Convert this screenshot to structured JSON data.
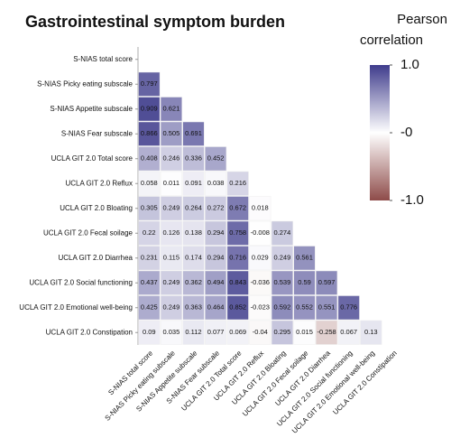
{
  "chart_data": {
    "type": "heatmap",
    "title": "Gastrointestinal symptom burden",
    "categories": [
      "S-NIAS total score",
      "S-NIAS Picky eating subscale",
      "S-NIAS Appetite subscale",
      "S-NIAS Fear subscale",
      "UCLA GIT 2.0 Total score",
      "UCLA GIT 2.0 Reflux",
      "UCLA GIT 2.0 Bloating",
      "UCLA GIT 2.0 Fecal soilage",
      "UCLA GIT 2.0 Diarrhea",
      "UCLA GIT 2.0 Social functioning",
      "UCLA GIT 2.0 Emotional well-being",
      "UCLA GIT 2.0 Constipation"
    ],
    "values": [
      [
        null,
        null,
        null,
        null,
        null,
        null,
        null,
        null,
        null,
        null,
        null,
        null
      ],
      [
        0.797,
        null,
        null,
        null,
        null,
        null,
        null,
        null,
        null,
        null,
        null,
        null
      ],
      [
        0.909,
        0.621,
        null,
        null,
        null,
        null,
        null,
        null,
        null,
        null,
        null,
        null
      ],
      [
        0.866,
        0.505,
        0.691,
        null,
        null,
        null,
        null,
        null,
        null,
        null,
        null,
        null
      ],
      [
        0.408,
        0.246,
        0.336,
        0.452,
        null,
        null,
        null,
        null,
        null,
        null,
        null,
        null
      ],
      [
        0.058,
        0.011,
        0.091,
        0.038,
        0.216,
        null,
        null,
        null,
        null,
        null,
        null,
        null
      ],
      [
        0.305,
        0.249,
        0.264,
        0.272,
        0.672,
        0.018,
        null,
        null,
        null,
        null,
        null,
        null
      ],
      [
        0.22,
        0.126,
        0.138,
        0.294,
        0.758,
        -0.008,
        0.274,
        null,
        null,
        null,
        null,
        null
      ],
      [
        0.231,
        0.115,
        0.174,
        0.294,
        0.716,
        0.029,
        0.249,
        0.561,
        null,
        null,
        null,
        null
      ],
      [
        0.437,
        0.249,
        0.362,
        0.494,
        0.843,
        -0.036,
        0.539,
        0.59,
        0.597,
        null,
        null,
        null
      ],
      [
        0.425,
        0.249,
        0.363,
        0.464,
        0.852,
        -0.023,
        0.592,
        0.552,
        0.551,
        0.776,
        null,
        null
      ],
      [
        0.09,
        0.035,
        0.112,
        0.077,
        0.069,
        -0.04,
        0.295,
        0.015,
        -0.258,
        0.067,
        0.13,
        null
      ]
    ],
    "colorbar": {
      "title": [
        "Pearson",
        "correlation"
      ],
      "lim": [
        -1,
        1
      ],
      "ticks": [
        {
          "value": 1,
          "label": "1.0"
        },
        {
          "value": 0,
          "label": "-0"
        },
        {
          "value": -1,
          "label": "-1.0"
        }
      ],
      "colors": [
        "#8e4b49",
        "#ffffff",
        "#3f3c8c"
      ]
    }
  }
}
